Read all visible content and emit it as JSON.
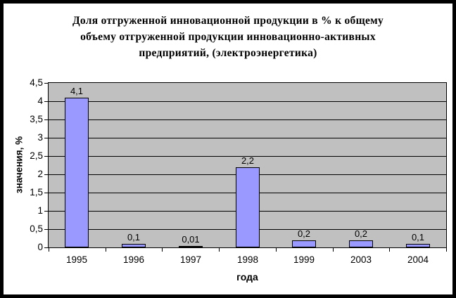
{
  "chart_data": {
    "type": "bar",
    "title": "Доля отгруженной инновационной продукции в % к общему объему отгруженной продукции инновационно-активных предприятий, (электроэнергетика)",
    "title_lines": [
      "Доля отгруженной инновационной продукции в % к общему",
      "объему отгруженной продукции инновационно-активных",
      "предприятий,  (электроэнергетика)"
    ],
    "categories": [
      "1995",
      "1996",
      "1997",
      "1998",
      "1999",
      "2003",
      "2004"
    ],
    "values": [
      4.1,
      0.1,
      0.01,
      2.2,
      0.2,
      0.2,
      0.1
    ],
    "value_labels": [
      "4,1",
      "0,1",
      "0,01",
      "2,2",
      "0,2",
      "0,2",
      "0,1"
    ],
    "xlabel": "года",
    "ylabel": "значения, %",
    "ylim": [
      0,
      4.5
    ],
    "ytick_step": 0.5,
    "ytick_labels": [
      "0",
      "0,5",
      "1",
      "1,5",
      "2",
      "2,5",
      "3",
      "3,5",
      "4",
      "4,5"
    ],
    "grid": true,
    "legend_position": "none",
    "colors": {
      "bar_fill": "#9999FF",
      "bar_border": "#000000",
      "plot_bg": "#C0C0C0",
      "grid_line": "#000000",
      "text": "#000000",
      "chart_bg": "#FFFFFF",
      "outer_border": "#000000"
    }
  }
}
